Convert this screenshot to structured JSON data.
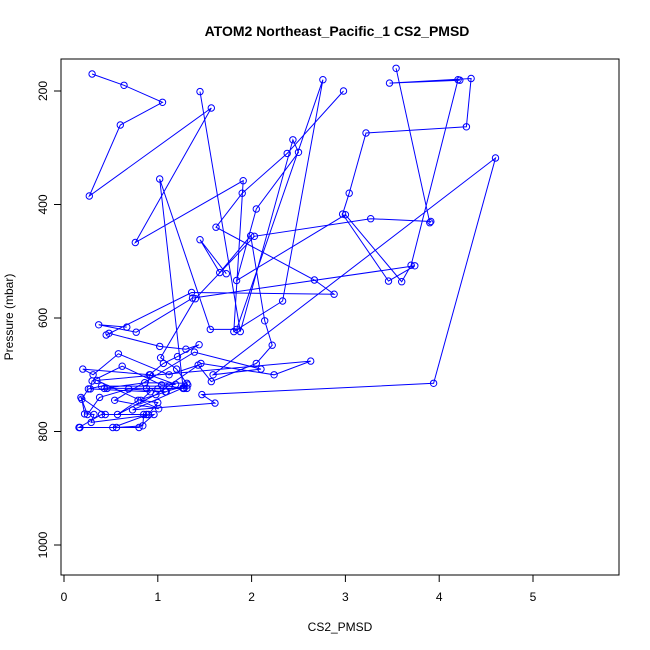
{
  "chart_data": {
    "type": "scatter",
    "title": "ATOM2 Northeast_Pacific_1 CS2_PMSD",
    "xlabel": "CS2_PMSD",
    "ylabel": "Pressure (mbar)",
    "xlim": [
      0,
      5.9
    ],
    "ylim": [
      1050,
      150
    ],
    "y_reversed": true,
    "x_ticks": [
      0,
      1,
      2,
      3,
      4,
      5
    ],
    "y_ticks": [
      200,
      400,
      600,
      800,
      1000
    ],
    "grid": false,
    "legend": "none",
    "series_color": "#0000ff",
    "marker": "open-circle",
    "line_connected": true,
    "series": [
      {
        "x": [
          0.3,
          0.64,
          1.05,
          0.6,
          0.27,
          1.57,
          0.76,
          1.91,
          1.81,
          2.33,
          2.76,
          1.84,
          1.56,
          1.02,
          1.27,
          0.73,
          1.61,
          1.47,
          3.94,
          4.6,
          1.59,
          2.1,
          1.39,
          0.54,
          1.01,
          0.35,
          2.63,
          2.24,
          1.46,
          0.98,
          0.57,
          0.79,
          1.09
        ],
        "y": [
          170,
          190,
          220,
          260,
          385,
          230,
          467,
          358,
          624,
          570,
          180,
          620,
          620,
          355,
          723,
          762,
          750,
          735,
          715,
          318,
          700,
          690,
          660,
          745,
          760,
          710,
          676,
          700,
          680,
          735,
          770,
          745,
          730
        ]
      },
      {
        "x": [
          1.45,
          1.88,
          2.44,
          2.5,
          2.05,
          1.84,
          3.0,
          3.6,
          3.7,
          4.2,
          4.22,
          3.47,
          4.34,
          4.29,
          3.22,
          3.04,
          2.97,
          3.46,
          3.74,
          1.37,
          0.77,
          0.37,
          0.67
        ],
        "y": [
          201,
          624,
          286,
          308,
          408,
          534,
          418,
          536,
          507,
          180,
          181,
          186,
          178,
          263,
          274,
          380,
          417,
          535,
          508,
          565,
          625,
          612,
          616
        ]
      },
      {
        "x": [
          1.73,
          1.45,
          1.66,
          1.99,
          2.14,
          2.22,
          2.05,
          1.57,
          1.43,
          1.12,
          0.58,
          0.31,
          0.2,
          0.92,
          0.88,
          1.0,
          1.28,
          1.31,
          0.86,
          0.43,
          0.46,
          1.31,
          1.27,
          1.12,
          0.4,
          0.26,
          0.19,
          0.22,
          0.32,
          0.29,
          0.96,
          0.8,
          0.17,
          0.16,
          0.4,
          0.88
        ],
        "y": [
          522,
          462,
          520,
          455,
          605,
          648,
          680,
          712,
          683,
          700,
          663,
          700,
          690,
          700,
          724,
          725,
          724,
          715,
          714,
          724,
          724,
          724,
          724,
          720,
          720,
          725,
          743,
          769,
          770,
          784,
          770,
          793,
          793,
          793,
          770,
          770
        ]
      },
      {
        "x": [
          2.98,
          2.38,
          1.9,
          1.62,
          2.67,
          2.88,
          1.36,
          0.45,
          0.48,
          1.02,
          1.3,
          1.44,
          1.21,
          1.06,
          0.91,
          1.19,
          1.04,
          0.62,
          0.3,
          0.28,
          0.92,
          0.82,
          1.0,
          0.9,
          0.52
        ],
        "y": [
          200,
          310,
          380,
          440,
          533,
          558,
          555,
          630,
          627,
          650,
          655,
          647,
          668,
          680,
          700,
          717,
          718,
          685,
          711,
          725,
          730,
          745,
          749,
          770,
          793
        ]
      },
      {
        "x": [
          3.54,
          3.9,
          3.91,
          3.27,
          2.03,
          1.4,
          1.03,
          1.2,
          1.32,
          1.08,
          0.69,
          0.38,
          0.25,
          0.18,
          0.44,
          0.85,
          0.84,
          0.56
        ],
        "y": [
          160,
          432,
          430,
          425,
          456,
          566,
          670,
          690,
          718,
          730,
          725,
          740,
          770,
          740,
          770,
          770,
          790,
          793
        ]
      }
    ]
  }
}
